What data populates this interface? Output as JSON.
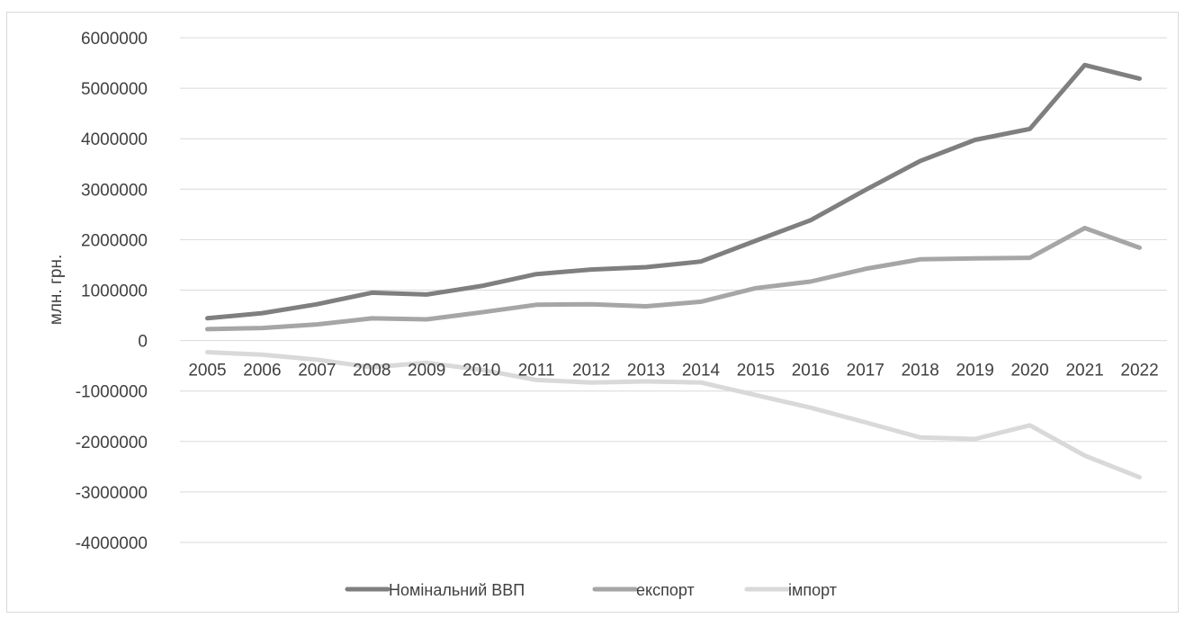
{
  "chart_data": {
    "type": "line",
    "title": "",
    "xlabel": "",
    "ylabel": "млн. грн.",
    "ylim": [
      -4000000,
      6000000
    ],
    "y_ticks": [
      6000000,
      5000000,
      4000000,
      3000000,
      2000000,
      1000000,
      0,
      -1000000,
      -2000000,
      -3000000,
      -4000000
    ],
    "grid": true,
    "legend_position": "bottom",
    "categories": [
      "2005",
      "2006",
      "2007",
      "2008",
      "2009",
      "2010",
      "2011",
      "2012",
      "2013",
      "2014",
      "2015",
      "2016",
      "2017",
      "2018",
      "2019",
      "2020",
      "2021",
      "2022"
    ],
    "series": [
      {
        "name": "Номінальний ВВП",
        "color": "#7f7f7f",
        "values": [
          441452,
          544153,
          720731,
          948056,
          913345,
          1082569,
          1316600,
          1408889,
          1454931,
          1566728,
          1979458,
          2385367,
          2983882,
          3560596,
          3977198,
          4194102,
          5459574,
          5191028
        ]
      },
      {
        "name": "експорт",
        "color": "#a6a6a6",
        "values": [
          226000,
          250000,
          320000,
          440000,
          420000,
          560000,
          710000,
          720000,
          680000,
          770000,
          1040000,
          1170000,
          1420000,
          1610000,
          1630000,
          1640000,
          2230000,
          1840000
        ]
      },
      {
        "name": "імпорт",
        "color": "#d9d9d9",
        "values": [
          -230000,
          -280000,
          -380000,
          -530000,
          -440000,
          -580000,
          -780000,
          -830000,
          -810000,
          -830000,
          -1080000,
          -1330000,
          -1620000,
          -1920000,
          -1950000,
          -1680000,
          -2280000,
          -2710000
        ]
      }
    ]
  }
}
